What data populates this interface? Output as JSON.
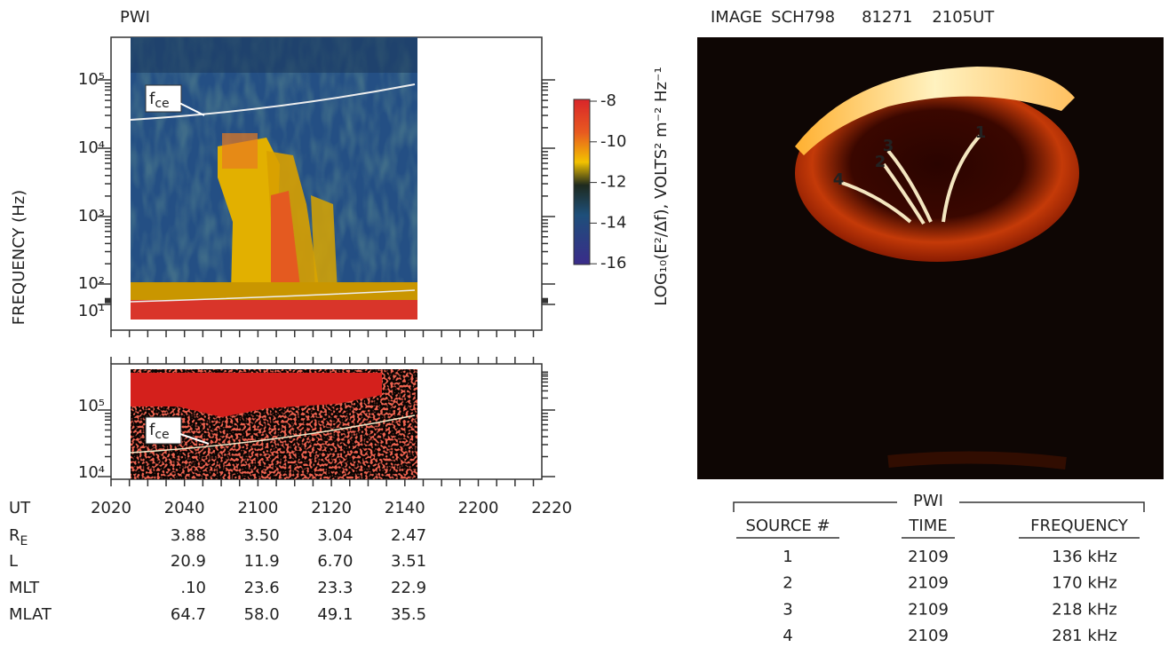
{
  "left_figure": {
    "title": "PWI",
    "y_axis_label": "FREQUENCY (Hz)",
    "top_panel": {
      "yticks": [
        "10⁵",
        "10⁴",
        "10³",
        "10²",
        "10¹"
      ],
      "annotation": {
        "main": "f",
        "sub": "ce"
      }
    },
    "colorbar": {
      "ticks": [
        "-8",
        "-10",
        "-12",
        "-14",
        "-16"
      ],
      "label": "LOG₁₀(E²/Δf), VOLTS² m⁻² Hz⁻¹"
    },
    "bottom_panel": {
      "yticks": [
        "10⁵",
        "10⁴"
      ],
      "annotation": {
        "main": "f",
        "sub": "ce"
      }
    },
    "x_axis": {
      "label": "UT",
      "ticks": [
        "2020",
        "2040",
        "2100",
        "2120",
        "2140",
        "2200",
        "2220"
      ]
    },
    "ephemeris": [
      {
        "label": "R",
        "label_sub": "E",
        "values": [
          "3.88",
          "3.50",
          "3.04",
          "2.47"
        ]
      },
      {
        "label": "L",
        "values": [
          "20.9",
          "11.9",
          "6.70",
          "3.51"
        ]
      },
      {
        "label": "MLT",
        "values": [
          ".10",
          "23.6",
          "23.3",
          "22.9"
        ]
      },
      {
        "label": "MLAT",
        "values": [
          "64.7",
          "58.0",
          "49.1",
          "35.5"
        ]
      }
    ]
  },
  "right_figure": {
    "title": [
      "IMAGE",
      "SCH798",
      "81271",
      "2105UT"
    ],
    "image_markers": [
      "1",
      "2",
      "3",
      "4"
    ],
    "table": {
      "title": "PWI",
      "headers": [
        "SOURCE #",
        "TIME",
        "FREQUENCY"
      ],
      "rows": [
        [
          "1",
          "2109",
          "136 kHz"
        ],
        [
          "2",
          "2109",
          "170 kHz"
        ],
        [
          "3",
          "2109",
          "218 kHz"
        ],
        [
          "4",
          "2109",
          "281 kHz"
        ]
      ]
    }
  }
}
